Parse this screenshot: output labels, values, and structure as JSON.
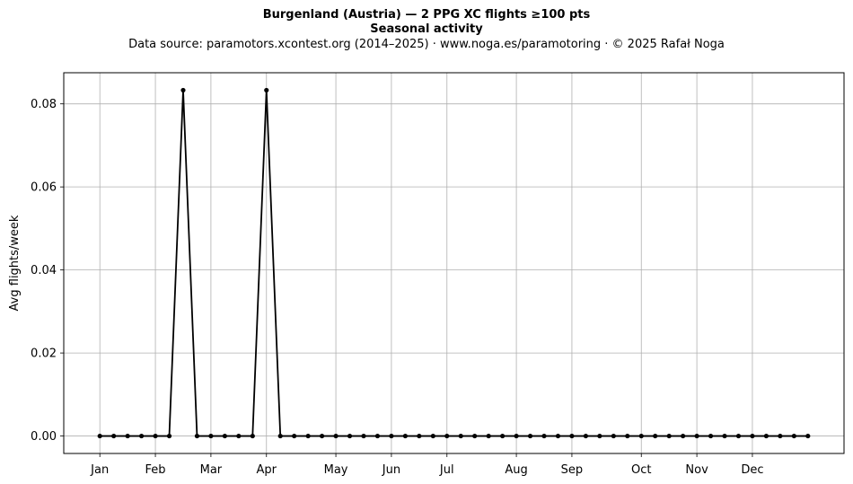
{
  "header": {
    "title": "Burgenland (Austria)  —  2 PPG XC flights ≥100 pts",
    "subtitle": "Seasonal activity",
    "source": "Data source: paramotors.xcontest.org (2014–2025)  ·  www.noga.es/paramotoring  ·  © 2025 Rafał Noga"
  },
  "chart_data": {
    "type": "line",
    "title": "Burgenland (Austria)  —  2 PPG XC flights ≥100 pts",
    "subtitle": "Seasonal activity",
    "xlabel": "",
    "ylabel": "Avg flights/week",
    "x_unit": "ISO week",
    "xlim": [
      -1.6,
      54.6
    ],
    "ylim": [
      -0.0042,
      0.0875
    ],
    "yticks": [
      0.0,
      0.02,
      0.04,
      0.06,
      0.08
    ],
    "ytick_labels": [
      "0.00",
      "0.02",
      "0.04",
      "0.06",
      "0.08"
    ],
    "xticks": [
      1,
      5,
      9,
      13,
      18,
      22,
      26,
      31,
      35,
      40,
      44,
      48
    ],
    "xtick_labels": [
      "Jan",
      "Feb",
      "Mar",
      "Apr",
      "May",
      "Jun",
      "Jul",
      "Aug",
      "Sep",
      "Oct",
      "Nov",
      "Dec"
    ],
    "grid": true,
    "legend": "none",
    "series": [
      {
        "color": "#000000",
        "x": [
          1,
          2,
          3,
          4,
          5,
          6,
          7,
          8,
          9,
          10,
          11,
          12,
          13,
          14,
          15,
          16,
          17,
          18,
          19,
          20,
          21,
          22,
          23,
          24,
          25,
          26,
          27,
          28,
          29,
          30,
          31,
          32,
          33,
          34,
          35,
          36,
          37,
          38,
          39,
          40,
          41,
          42,
          43,
          44,
          45,
          46,
          47,
          48,
          49,
          50,
          51,
          52
        ],
        "y": [
          0,
          0,
          0,
          0,
          0,
          0,
          0.0833,
          0,
          0,
          0,
          0,
          0,
          0.0833,
          0,
          0,
          0,
          0,
          0,
          0,
          0,
          0,
          0,
          0,
          0,
          0,
          0,
          0,
          0,
          0,
          0,
          0,
          0,
          0,
          0,
          0,
          0,
          0,
          0,
          0,
          0,
          0,
          0,
          0,
          0,
          0,
          0,
          0,
          0,
          0,
          0,
          0,
          0
        ]
      }
    ]
  }
}
